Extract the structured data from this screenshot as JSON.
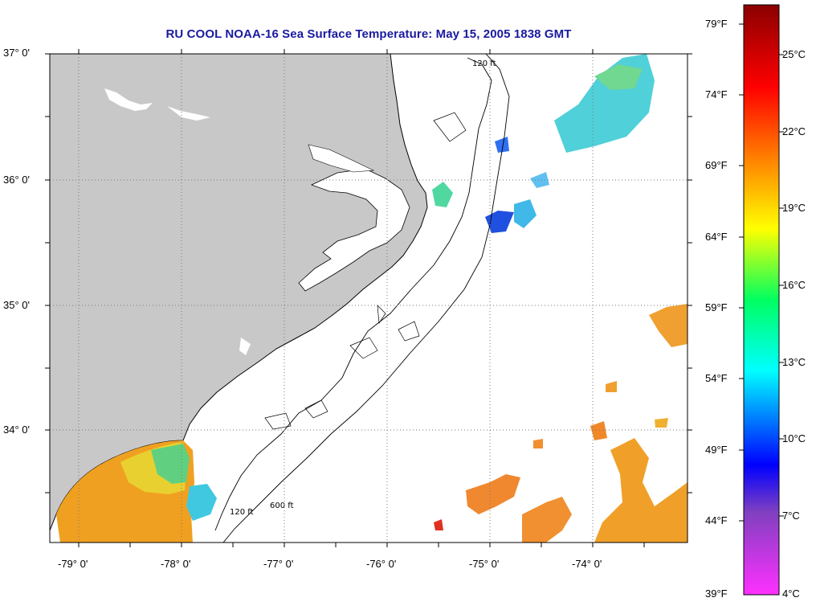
{
  "title": "RU COOL  NOAA-16  Sea Surface Temperature:  May 15, 2005 1838 GMT",
  "map": {
    "lon_range": [
      -79.3,
      -73.1
    ],
    "lat_range": [
      33.15,
      37.0
    ],
    "latitude_labels": [
      {
        "lat": 37,
        "text": "37° 0'"
      },
      {
        "lat": 36,
        "text": "36° 0'"
      },
      {
        "lat": 35,
        "text": "35° 0'"
      },
      {
        "lat": 34,
        "text": "34° 0'"
      }
    ],
    "longitude_labels": [
      {
        "lon": -79,
        "text": "-79° 0'"
      },
      {
        "lon": -78,
        "text": "-78° 0'"
      },
      {
        "lon": -77,
        "text": "-77° 0'"
      },
      {
        "lon": -76,
        "text": "-76° 0'"
      },
      {
        "lon": -75,
        "text": "-75° 0'"
      },
      {
        "lon": -74,
        "text": "-74° 0'"
      }
    ],
    "contour_labels": [
      "120 ft",
      "600 ft"
    ],
    "colors": {
      "land": "#c8c8c8",
      "grid": "#7a7a7a",
      "frame": "#000000"
    }
  },
  "colorbar": {
    "fahrenheit_labels": [
      "79°F",
      "74°F",
      "69°F",
      "64°F",
      "59°F",
      "54°F",
      "49°F",
      "44°F",
      "39°F"
    ],
    "celsius_labels": [
      "25°C",
      "22°C",
      "19°C",
      "16°C",
      "13°C",
      "10°C",
      "7°C",
      "4°C"
    ],
    "gradient_stops": [
      "#8b0000",
      "#ff0000",
      "#ff8000",
      "#ffff00",
      "#00ff60",
      "#00ffff",
      "#0000ff",
      "#8040c0",
      "#ff30ff"
    ]
  }
}
